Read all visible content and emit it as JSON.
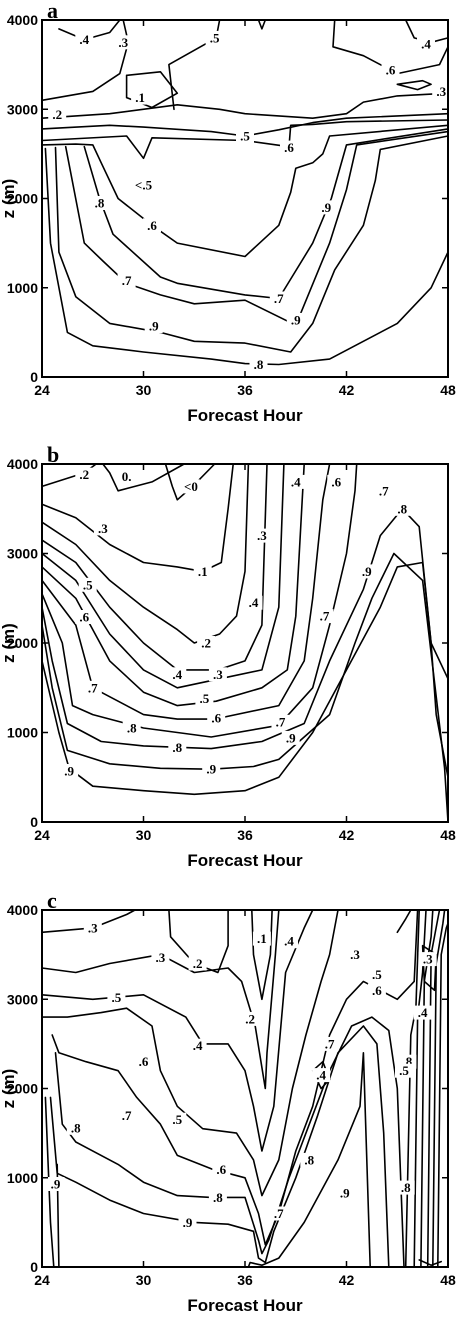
{
  "chart_data": [
    {
      "type": "contour",
      "panel_label": "a",
      "xlabel": "Forecast Hour",
      "ylabel": "z (m)",
      "xlim": [
        24,
        48
      ],
      "ylim": [
        0,
        4000
      ],
      "x_ticks": [
        "24",
        "30",
        "36",
        "42",
        "48"
      ],
      "y_ticks": [
        "0",
        "1000",
        "2000",
        "3000",
        "4000"
      ],
      "contour_labels": [
        ".4",
        ".3",
        ".5",
        ".6",
        ".4",
        ".3",
        ".1",
        ".2",
        ".5",
        ".6",
        "<.5",
        ".8",
        ".6",
        ".7",
        ".7",
        ".9",
        ".9",
        ".9",
        ".8"
      ]
    },
    {
      "type": "contour",
      "panel_label": "b",
      "xlabel": "Forecast Hour",
      "ylabel": "z (m)",
      "xlim": [
        24,
        48
      ],
      "ylim": [
        0,
        4000
      ],
      "x_ticks": [
        "24",
        "30",
        "36",
        "42",
        "48"
      ],
      "y_ticks": [
        "0",
        "1000",
        "2000",
        "3000",
        "4000"
      ],
      "contour_labels": [
        ".2",
        "0.",
        "<0",
        ".4",
        ".6",
        ".3",
        ".1",
        ".3",
        ".4",
        ".7",
        ".7",
        ".8",
        ".5",
        ".9",
        ".6",
        ".2",
        ".4",
        ".3",
        ".7",
        ".5",
        ".6",
        ".8",
        ".7",
        ".8",
        ".9",
        ".9",
        ".9"
      ]
    },
    {
      "type": "contour",
      "panel_label": "c",
      "xlabel": "Forecast Hour",
      "ylabel": "z (m)",
      "xlim": [
        24,
        48
      ],
      "ylim": [
        0,
        4000
      ],
      "x_ticks": [
        "24",
        "30",
        "36",
        "42",
        "48"
      ],
      "y_ticks": [
        "0",
        "1000",
        "2000",
        "3000",
        "4000"
      ],
      "contour_labels": [
        ".3",
        ".2",
        ".1",
        ".3",
        ".4",
        ".5",
        ".3",
        ".2",
        ".4",
        ".5",
        ".6",
        ".6",
        ".3",
        ".4",
        ".7",
        ".4",
        ".8",
        ".7",
        ".5",
        ".5",
        ".8",
        ".8",
        ".6",
        ".8",
        ".9",
        ".8",
        ".9",
        ".9",
        ".7"
      ]
    }
  ]
}
